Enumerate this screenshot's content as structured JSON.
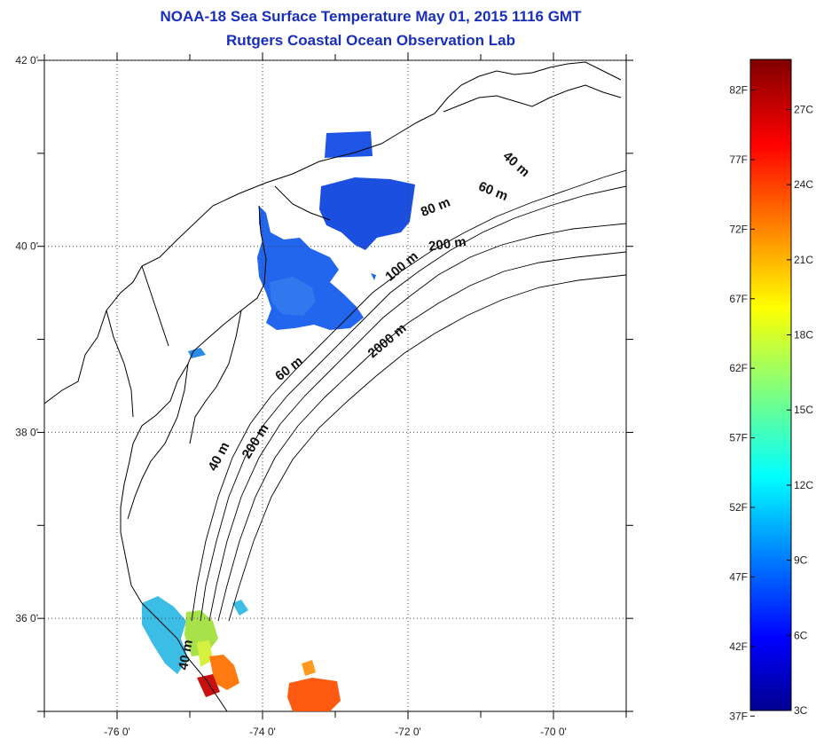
{
  "title": {
    "line1": "NOAA-18 Sea Surface Temperature May 01, 2015 1116 GMT",
    "line2": "Rutgers Coastal Ocean Observation Lab"
  },
  "map": {
    "lon_range": [
      -77,
      -69
    ],
    "lat_range": [
      35,
      42
    ],
    "lon_ticks": [
      {
        "value": -76,
        "label": "-76 0'"
      },
      {
        "value": -74,
        "label": "-74 0'"
      },
      {
        "value": -72,
        "label": "-72 0'"
      },
      {
        "value": -70,
        "label": "-70 0'"
      }
    ],
    "lat_ticks": [
      {
        "value": 42,
        "label": "42 0'"
      },
      {
        "value": 40,
        "label": "40 0'"
      },
      {
        "value": 38,
        "label": "38 0'"
      },
      {
        "value": 36,
        "label": "36 0'"
      }
    ],
    "grid": "dotted",
    "contour_labels": [
      {
        "text": "40 m",
        "lon": -70.55,
        "lat": 40.85,
        "rot": 42
      },
      {
        "text": "60 m",
        "lon": -70.85,
        "lat": 40.55,
        "rot": 22
      },
      {
        "text": "80 m",
        "lon": -71.6,
        "lat": 40.38,
        "rot": -22
      },
      {
        "text": "200 m",
        "lon": -71.45,
        "lat": 39.98,
        "rot": -8
      },
      {
        "text": "100 m",
        "lon": -72.05,
        "lat": 39.75,
        "rot": -40
      },
      {
        "text": "2000 m",
        "lon": -72.25,
        "lat": 38.95,
        "rot": -40
      },
      {
        "text": "60 m",
        "lon": -73.6,
        "lat": 38.65,
        "rot": -38
      },
      {
        "text": "200 m",
        "lon": -74.05,
        "lat": 37.88,
        "rot": -58
      },
      {
        "text": "40 m",
        "lon": -74.55,
        "lat": 37.72,
        "rot": -62
      },
      {
        "text": "40 m",
        "lon": -75.0,
        "lat": 35.6,
        "rot": -80
      }
    ]
  },
  "colorbar": {
    "orientation": "vertical",
    "colormap": "jet",
    "celsius_range": [
      3,
      29
    ],
    "fahrenheit_labels": [
      "37F",
      "42F",
      "47F",
      "52F",
      "57F",
      "62F",
      "67F",
      "72F",
      "77F",
      "82F"
    ],
    "celsius_labels": [
      "3C",
      "6C",
      "9C",
      "12C",
      "15C",
      "18C",
      "21C",
      "24C",
      "27C"
    ]
  }
}
